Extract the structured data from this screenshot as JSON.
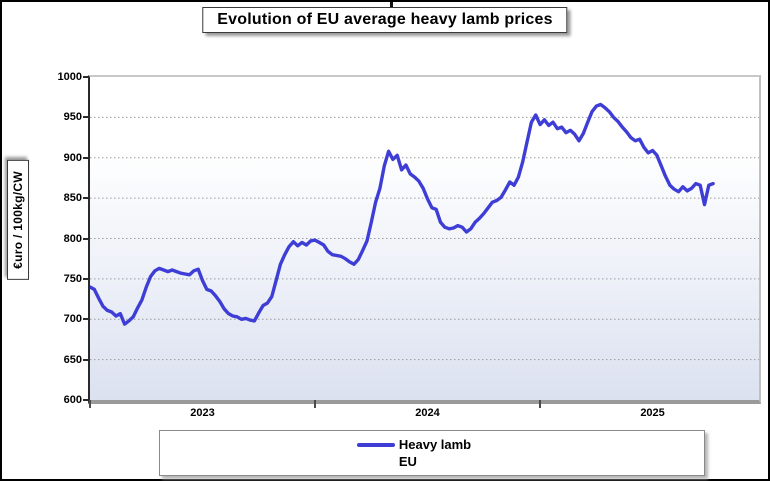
{
  "title": "Evolution of EU average heavy lamb prices",
  "y_axis": {
    "unit_label": "€uro / 100kg/CW"
  },
  "legend": {
    "series_label": "Heavy lamb",
    "region_label": "EU"
  },
  "colors": {
    "line": "#3e3ed6",
    "grid": "#9a9a9a",
    "axis_dark": "#2a2a2a"
  },
  "chart_data": {
    "type": "line",
    "title": "Evolution of EU average heavy lamb prices",
    "xlabel": "",
    "ylabel": "€uro / 100kg/CW",
    "ylim": [
      600,
      1000
    ],
    "xlim": [
      2023,
      2025.973
    ],
    "grid": "horizontal-dotted",
    "legend_position": "bottom",
    "y_ticks": [
      1000,
      950,
      900,
      850,
      800,
      750,
      700,
      650,
      600
    ],
    "x_tick_positions": [
      2023,
      2024,
      2025
    ],
    "x_tick_labels": [
      "2023",
      "2024",
      "2025"
    ],
    "x_unit": "weeks (52 per year), starting January 2023",
    "points_per_year": 52,
    "series": [
      {
        "name": "Heavy lamb EU",
        "color": "#3e3ed6",
        "values": [
          740,
          737,
          726,
          716,
          711,
          709,
          704,
          707,
          694,
          698,
          703,
          714,
          724,
          740,
          753,
          760,
          763,
          761,
          759,
          761,
          759,
          757,
          756,
          755,
          760,
          762,
          748,
          737,
          735,
          729,
          722,
          713,
          707,
          704,
          703,
          700,
          701,
          699,
          698,
          708,
          717,
          720,
          728,
          748,
          768,
          780,
          790,
          796,
          791,
          795,
          792,
          797,
          798,
          795,
          792,
          784,
          780,
          779,
          778,
          775,
          771,
          768,
          774,
          785,
          797,
          820,
          845,
          862,
          890,
          908,
          898,
          903,
          885,
          891,
          880,
          876,
          871,
          862,
          849,
          838,
          836,
          820,
          814,
          812,
          813,
          816,
          814,
          808,
          812,
          820,
          825,
          831,
          838,
          845,
          847,
          851,
          860,
          870,
          866,
          876,
          895,
          920,
          944,
          953,
          941,
          947,
          940,
          944,
          936,
          938,
          931,
          934,
          929,
          921,
          930,
          944,
          957,
          964,
          966,
          962,
          957,
          950,
          945,
          938,
          932,
          925,
          921,
          923,
          913,
          906,
          909,
          903,
          890,
          877,
          866,
          861,
          858,
          864,
          859,
          862,
          868,
          866,
          842,
          866,
          868
        ]
      }
    ]
  }
}
